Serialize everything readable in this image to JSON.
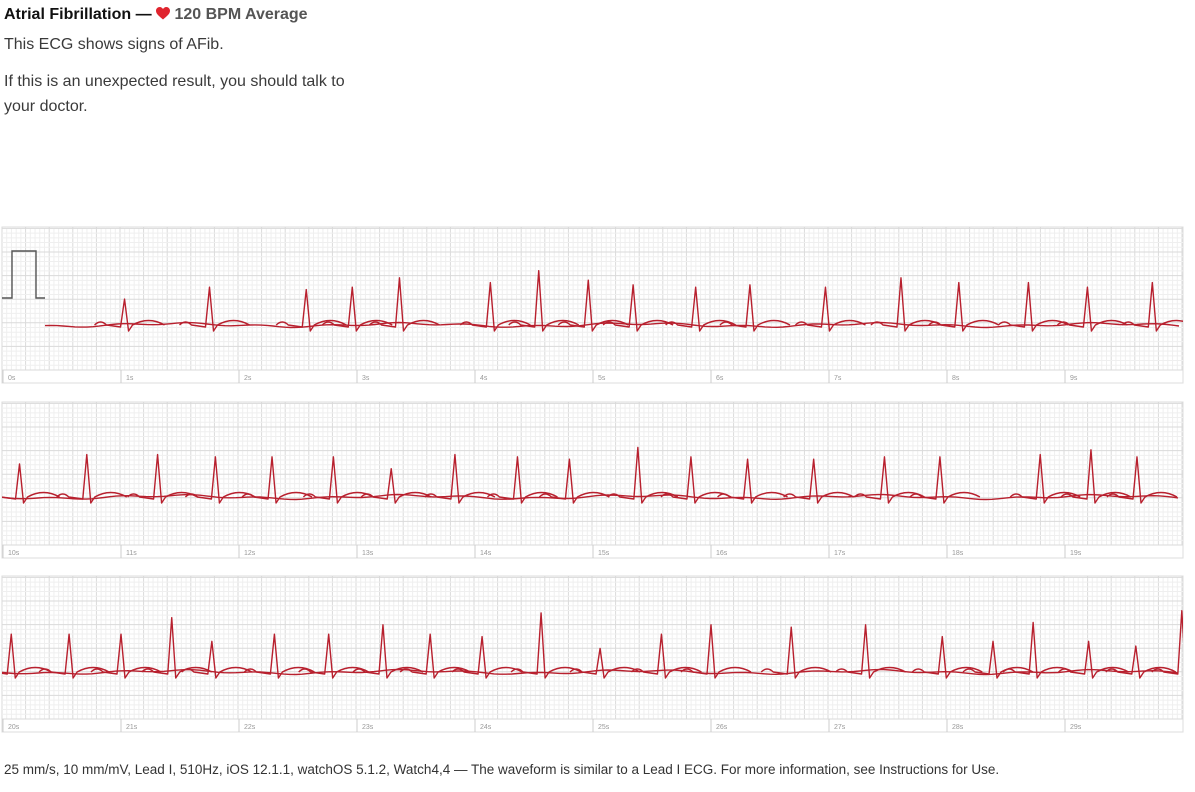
{
  "header": {
    "title": "Atrial Fibrillation —",
    "average": "120 BPM Average"
  },
  "summary": "This ECG shows signs of AFib.",
  "advice": "If this is an unexpected result, you should talk to your doctor.",
  "strips": [
    {
      "labels": [
        "0s",
        "1s",
        "2s",
        "3s",
        "4s",
        "5s",
        "6s",
        "7s",
        "8s",
        "9s"
      ],
      "times": [
        1.03,
        1.75,
        2.57,
        2.96,
        3.36,
        4.13,
        4.54,
        4.96,
        5.34,
        5.87,
        6.33,
        6.97,
        7.61,
        8.1,
        8.69,
        9.19,
        9.74
      ],
      "amplitudes": [
        0.55,
        0.8,
        0.75,
        0.8,
        1.0,
        0.9,
        1.15,
        0.95,
        0.85,
        0.8,
        0.85,
        0.8,
        1.0,
        0.9,
        0.9,
        0.8,
        0.9
      ]
    },
    {
      "labels": [
        "10s",
        "11s",
        "12s",
        "13s",
        "14s",
        "15s",
        "16s",
        "17s",
        "18s",
        "19s"
      ],
      "times": [
        0.14,
        0.71,
        1.31,
        1.8,
        2.28,
        2.8,
        3.29,
        3.83,
        4.36,
        4.8,
        5.38,
        5.83,
        6.31,
        6.87,
        7.47,
        7.94,
        8.79,
        9.22,
        9.61
      ],
      "amplitudes": [
        0.7,
        0.9,
        0.9,
        0.85,
        0.85,
        0.85,
        0.6,
        0.9,
        0.85,
        0.8,
        1.05,
        0.85,
        0.8,
        0.8,
        0.85,
        0.85,
        0.9,
        1.0,
        0.85
      ]
    },
    {
      "labels": [
        "20s",
        "21s",
        "22s",
        "23s",
        "24s",
        "25s",
        "26s",
        "27s",
        "28s",
        "29s"
      ],
      "times": [
        0.07,
        0.56,
        1.0,
        1.43,
        1.77,
        2.3,
        2.76,
        3.22,
        3.62,
        4.06,
        4.56,
        5.06,
        5.58,
        6.0,
        6.68,
        7.31,
        7.96,
        8.39,
        8.73,
        9.2,
        9.6,
        9.99
      ],
      "amplitudes": [
        0.8,
        0.8,
        0.8,
        1.15,
        0.65,
        0.8,
        0.8,
        1.0,
        0.8,
        0.75,
        1.25,
        0.5,
        0.8,
        1.0,
        0.95,
        1.0,
        0.75,
        0.65,
        1.05,
        0.65,
        0.55,
        1.3
      ]
    }
  ],
  "footer": "25 mm/s, 10 mm/mV, Lead I, 510Hz, iOS 12.1.1, watchOS 5.1.2, Watch4,4 — The waveform is similar to a Lead I ECG. For more information, see Instructions for Use."
}
